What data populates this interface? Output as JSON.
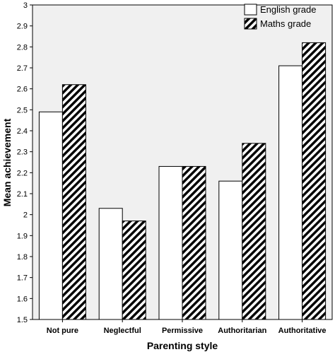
{
  "chart_data": {
    "type": "bar",
    "categories": [
      "Not pure",
      "Neglectful",
      "Permissive",
      "Authoritarian",
      "Authoritative"
    ],
    "series": [
      {
        "name": "English grade",
        "values": [
          2.49,
          2.03,
          2.23,
          2.16,
          2.71
        ],
        "fill": "solid",
        "color": "#ffffff"
      },
      {
        "name": "Maths grade",
        "values": [
          2.62,
          1.97,
          2.23,
          2.34,
          2.82
        ],
        "fill": "diagonal-hatch",
        "color": "#000000"
      }
    ],
    "title": "",
    "xlabel": "Parenting style",
    "ylabel": "Mean achievement",
    "ylim": [
      1.5,
      3.0
    ],
    "yticks": [
      "1.5",
      "1.6",
      "1.7",
      "1.8",
      "1.9",
      "2",
      "2.1",
      "2.2",
      "2.3",
      "2.4",
      "2.5",
      "2.6",
      "2.7",
      "2.8",
      "2.9",
      "3"
    ],
    "grid": false,
    "legend_position": "top-right",
    "plot_background": "#f0f0f0"
  }
}
